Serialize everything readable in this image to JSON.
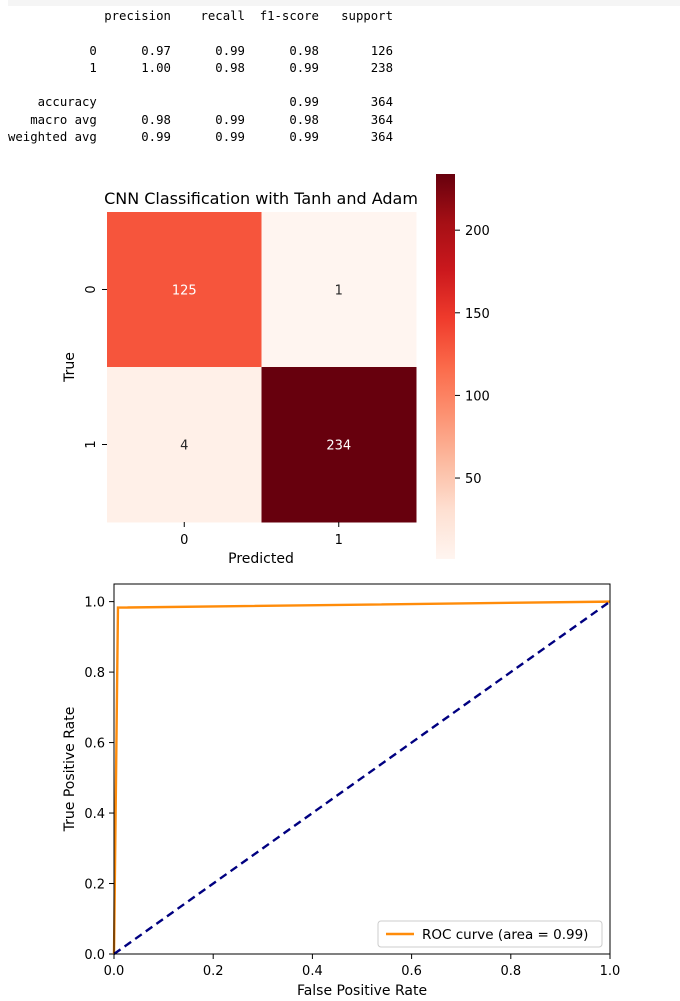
{
  "report": {
    "header": [
      "",
      "precision",
      "recall",
      "f1-score",
      "support"
    ],
    "rows": [
      [
        "0",
        "0.97",
        "0.99",
        "0.98",
        "126"
      ],
      [
        "1",
        "1.00",
        "0.98",
        "0.99",
        "238"
      ],
      null,
      [
        "accuracy",
        "",
        "",
        "0.99",
        "364"
      ],
      [
        "macro avg",
        "0.98",
        "0.99",
        "0.98",
        "364"
      ],
      [
        "weighted avg",
        "0.99",
        "0.99",
        "0.99",
        "364"
      ]
    ]
  },
  "chart_data": [
    {
      "type": "heatmap",
      "title": "CNN Classification with Tanh and Adam",
      "xlabel": "Predicted",
      "ylabel": "True",
      "x_categories": [
        "0",
        "1"
      ],
      "y_categories": [
        "0",
        "1"
      ],
      "values": [
        [
          125,
          1
        ],
        [
          4,
          234
        ]
      ],
      "colormap": "Reds",
      "colorbar_range": [
        1,
        234
      ],
      "colorbar_ticks": [
        50,
        100,
        150,
        200
      ],
      "cell_colors": [
        [
          "#f6553c",
          "#fff5f0"
        ],
        [
          "#fff0e8",
          "#67000d"
        ]
      ],
      "annotation_colors": [
        [
          "#ffffff",
          "#262626"
        ],
        [
          "#262626",
          "#ffffff"
        ]
      ]
    },
    {
      "type": "line",
      "xlabel": "False Positive Rate",
      "ylabel": "True Positive Rate",
      "xlim": [
        0.0,
        1.0
      ],
      "ylim": [
        0.0,
        1.05
      ],
      "xticks": [
        "0.0",
        "0.2",
        "0.4",
        "0.6",
        "0.8",
        "1.0"
      ],
      "yticks": [
        "0.0",
        "0.2",
        "0.4",
        "0.6",
        "0.8",
        "1.0"
      ],
      "legend_position": "lower-right",
      "series": [
        {
          "name": "ROC curve (area = 0.99)",
          "color": "#ff8c0a",
          "style": "solid",
          "x": [
            0.0,
            0.0,
            0.008,
            1.0
          ],
          "y": [
            0.0,
            0.0,
            0.983,
            1.0
          ]
        },
        {
          "color": "#000080",
          "style": "dashed",
          "x": [
            0.0,
            1.0
          ],
          "y": [
            0.0,
            1.0
          ]
        }
      ]
    }
  ]
}
